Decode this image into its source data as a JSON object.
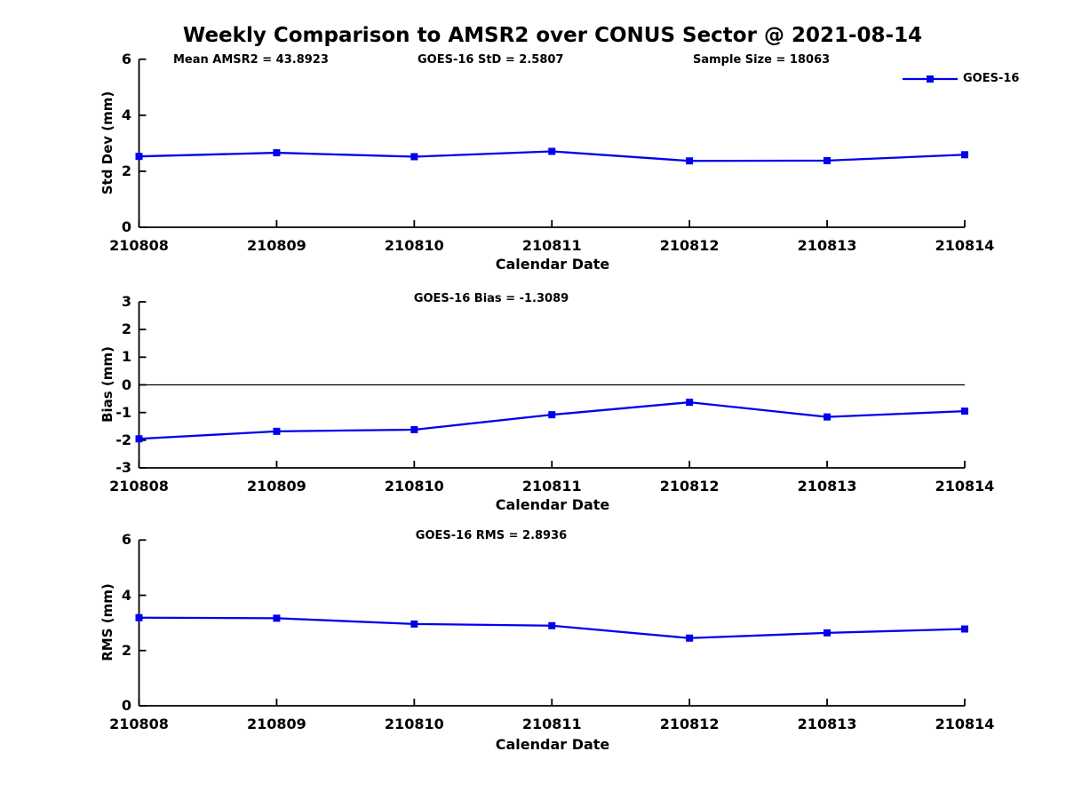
{
  "title": "Weekly Comparison to AMSR2 over CONUS Sector @ 2021-08-14",
  "legend": {
    "label": "GOES-16"
  },
  "colors": {
    "line": "#0000ee",
    "axis": "#000000",
    "text": "#000000"
  },
  "chart_data": [
    {
      "type": "line",
      "x": [
        "210808",
        "210809",
        "210810",
        "210811",
        "210812",
        "210813",
        "210814"
      ],
      "series": [
        {
          "name": "GOES-16",
          "values": [
            2.53,
            2.66,
            2.52,
            2.71,
            2.37,
            2.38,
            2.59
          ]
        }
      ],
      "annotations": [
        "Mean AMSR2 = 43.8923",
        "GOES-16 StD = 2.5807",
        "Sample Size = 18063"
      ],
      "ylabel": "Std Dev (mm)",
      "xlabel": "Calendar Date",
      "ylim": [
        0,
        6
      ],
      "yticks": [
        0,
        2,
        4,
        6
      ],
      "grid": false,
      "legend_position": "top-right",
      "marker": "square"
    },
    {
      "type": "line",
      "x": [
        "210808",
        "210809",
        "210810",
        "210811",
        "210812",
        "210813",
        "210814"
      ],
      "series": [
        {
          "name": "GOES-16",
          "values": [
            -1.95,
            -1.68,
            -1.62,
            -1.08,
            -0.63,
            -1.16,
            -0.95
          ]
        }
      ],
      "annotations": [
        "GOES-16 Bias  = -1.3089"
      ],
      "ylabel": "Bias (mm)",
      "xlabel": "Calendar Date",
      "ylim": [
        -3,
        3
      ],
      "yticks": [
        -3,
        -2,
        -1,
        0,
        1,
        2,
        3
      ],
      "zero_line": true,
      "grid": false,
      "marker": "square"
    },
    {
      "type": "line",
      "x": [
        "210808",
        "210809",
        "210810",
        "210811",
        "210812",
        "210813",
        "210814"
      ],
      "series": [
        {
          "name": "GOES-16",
          "values": [
            3.19,
            3.17,
            2.96,
            2.9,
            2.45,
            2.64,
            2.78
          ]
        }
      ],
      "annotations": [
        "GOES-16 RMS = 2.8936"
      ],
      "ylabel": "RMS (mm)",
      "xlabel": "Calendar Date",
      "ylim": [
        0,
        6
      ],
      "yticks": [
        0,
        2,
        4,
        6
      ],
      "grid": false,
      "marker": "square"
    }
  ]
}
